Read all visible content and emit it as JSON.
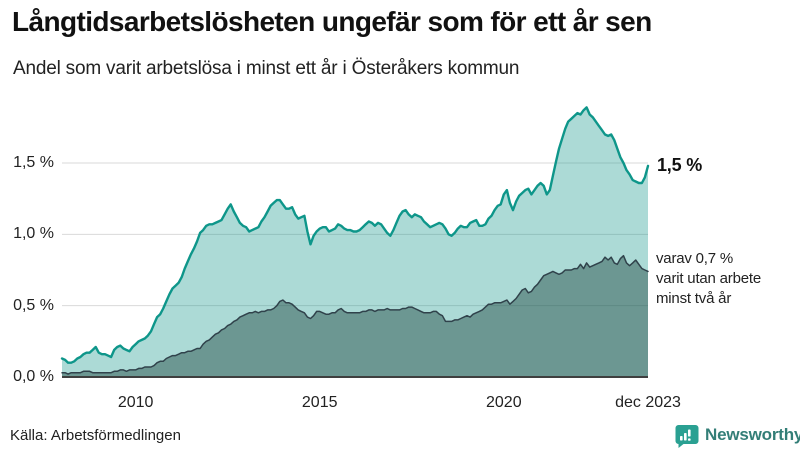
{
  "header": {
    "title": "Långtidsarbetslösheten ungefär som för ett år sen",
    "subtitle": "Andel som varit arbetslösa i minst ett år i Österåkers kommun"
  },
  "colors": {
    "accent_teal": "#0e968a",
    "light_fill": "rgba(17,150,137,0.35)",
    "dark_line": "#30424b",
    "dark_fill": "rgba(32,72,66,0.46)",
    "gridline": "#d9d9d9",
    "axis_line": "#3f3f3f",
    "text_dark": "#111111",
    "brand_teal": "#2aa092"
  },
  "chart_data": {
    "type": "area",
    "x_start_year": 2008,
    "points_per_year": 12,
    "x_ticks": [
      {
        "year": 2010,
        "label": "2010"
      },
      {
        "year": 2015,
        "label": "2015"
      },
      {
        "year": 2020,
        "label": "2020"
      },
      {
        "year": 2024,
        "label": "dec 2023"
      }
    ],
    "y_ticks": [
      {
        "value": 0.0,
        "label": "0,0 %"
      },
      {
        "value": 0.5,
        "label": "0,5 %"
      },
      {
        "value": 1.0,
        "label": "1,0 %"
      },
      {
        "value": 1.5,
        "label": "1,5 %"
      }
    ],
    "ylim": [
      0,
      1.95
    ],
    "grid": true,
    "legend_position": "none",
    "series": [
      {
        "name": "Andel arbetslösa minst ett år",
        "stroke": "#0e968a",
        "stroke_width": 2.4,
        "fill": "rgba(17,150,137,0.35)",
        "values": [
          0.13,
          0.12,
          0.1,
          0.1,
          0.11,
          0.13,
          0.14,
          0.16,
          0.17,
          0.17,
          0.19,
          0.21,
          0.17,
          0.16,
          0.16,
          0.15,
          0.14,
          0.19,
          0.21,
          0.22,
          0.2,
          0.19,
          0.18,
          0.21,
          0.23,
          0.25,
          0.26,
          0.27,
          0.29,
          0.32,
          0.37,
          0.42,
          0.44,
          0.48,
          0.53,
          0.58,
          0.62,
          0.64,
          0.66,
          0.7,
          0.76,
          0.81,
          0.86,
          0.9,
          0.95,
          1.01,
          1.03,
          1.06,
          1.07,
          1.07,
          1.08,
          1.09,
          1.1,
          1.14,
          1.18,
          1.21,
          1.16,
          1.12,
          1.08,
          1.06,
          1.05,
          1.02,
          1.03,
          1.04,
          1.05,
          1.09,
          1.12,
          1.16,
          1.2,
          1.22,
          1.24,
          1.24,
          1.21,
          1.18,
          1.18,
          1.19,
          1.14,
          1.11,
          1.12,
          1.13,
          1.02,
          0.93,
          0.99,
          1.02,
          1.04,
          1.05,
          1.05,
          1.02,
          1.03,
          1.04,
          1.07,
          1.06,
          1.04,
          1.03,
          1.03,
          1.02,
          1.02,
          1.03,
          1.05,
          1.07,
          1.09,
          1.08,
          1.06,
          1.08,
          1.07,
          1.04,
          1.01,
          0.99,
          1.03,
          1.08,
          1.13,
          1.16,
          1.17,
          1.14,
          1.12,
          1.14,
          1.13,
          1.12,
          1.09,
          1.07,
          1.05,
          1.06,
          1.07,
          1.08,
          1.07,
          1.04,
          1.0,
          0.99,
          1.01,
          1.04,
          1.06,
          1.05,
          1.05,
          1.08,
          1.09,
          1.1,
          1.06,
          1.06,
          1.07,
          1.11,
          1.13,
          1.17,
          1.2,
          1.21,
          1.28,
          1.31,
          1.22,
          1.17,
          1.23,
          1.27,
          1.29,
          1.31,
          1.32,
          1.28,
          1.31,
          1.34,
          1.36,
          1.34,
          1.28,
          1.31,
          1.41,
          1.51,
          1.6,
          1.67,
          1.74,
          1.79,
          1.81,
          1.83,
          1.85,
          1.84,
          1.87,
          1.89,
          1.84,
          1.82,
          1.79,
          1.76,
          1.73,
          1.7,
          1.69,
          1.7,
          1.66,
          1.6,
          1.54,
          1.5,
          1.45,
          1.42,
          1.38,
          1.37,
          1.36,
          1.36,
          1.4,
          1.48
        ]
      },
      {
        "name": "Varav utan arbete minst två år",
        "stroke": "#30424b",
        "stroke_width": 1.5,
        "fill": "rgba(32,72,66,0.46)",
        "values": [
          0.03,
          0.03,
          0.02,
          0.03,
          0.03,
          0.03,
          0.03,
          0.04,
          0.04,
          0.04,
          0.03,
          0.03,
          0.03,
          0.03,
          0.03,
          0.03,
          0.03,
          0.04,
          0.04,
          0.05,
          0.05,
          0.04,
          0.05,
          0.05,
          0.05,
          0.06,
          0.06,
          0.07,
          0.07,
          0.07,
          0.08,
          0.1,
          0.11,
          0.11,
          0.13,
          0.14,
          0.15,
          0.15,
          0.16,
          0.17,
          0.17,
          0.18,
          0.18,
          0.19,
          0.2,
          0.2,
          0.23,
          0.25,
          0.26,
          0.28,
          0.3,
          0.31,
          0.33,
          0.34,
          0.36,
          0.37,
          0.39,
          0.4,
          0.42,
          0.43,
          0.44,
          0.45,
          0.45,
          0.46,
          0.45,
          0.46,
          0.46,
          0.47,
          0.47,
          0.48,
          0.5,
          0.53,
          0.54,
          0.52,
          0.52,
          0.51,
          0.49,
          0.47,
          0.46,
          0.45,
          0.42,
          0.41,
          0.43,
          0.46,
          0.46,
          0.45,
          0.44,
          0.44,
          0.45,
          0.45,
          0.47,
          0.48,
          0.46,
          0.45,
          0.45,
          0.45,
          0.45,
          0.45,
          0.46,
          0.46,
          0.47,
          0.47,
          0.46,
          0.47,
          0.47,
          0.47,
          0.48,
          0.47,
          0.47,
          0.47,
          0.47,
          0.48,
          0.48,
          0.49,
          0.49,
          0.48,
          0.47,
          0.46,
          0.45,
          0.45,
          0.45,
          0.46,
          0.46,
          0.44,
          0.43,
          0.39,
          0.39,
          0.39,
          0.4,
          0.4,
          0.41,
          0.42,
          0.43,
          0.42,
          0.44,
          0.45,
          0.46,
          0.47,
          0.49,
          0.51,
          0.51,
          0.52,
          0.52,
          0.52,
          0.53,
          0.54,
          0.51,
          0.53,
          0.55,
          0.58,
          0.61,
          0.62,
          0.59,
          0.6,
          0.63,
          0.65,
          0.68,
          0.71,
          0.72,
          0.73,
          0.74,
          0.73,
          0.72,
          0.73,
          0.75,
          0.75,
          0.75,
          0.76,
          0.76,
          0.79,
          0.76,
          0.8,
          0.77,
          0.78,
          0.79,
          0.8,
          0.81,
          0.84,
          0.82,
          0.84,
          0.8,
          0.79,
          0.83,
          0.85,
          0.8,
          0.78,
          0.8,
          0.82,
          0.79,
          0.76,
          0.75,
          0.74
        ]
      }
    ],
    "annotations": {
      "end_value_label": "1,5 %",
      "secondary_note_lines": [
        "varav 0,7 %",
        "varit utan arbete",
        "minst två år"
      ]
    }
  },
  "footer": {
    "source": "Källa: Arbetsförmedlingen",
    "brand": "Newsworthy"
  }
}
